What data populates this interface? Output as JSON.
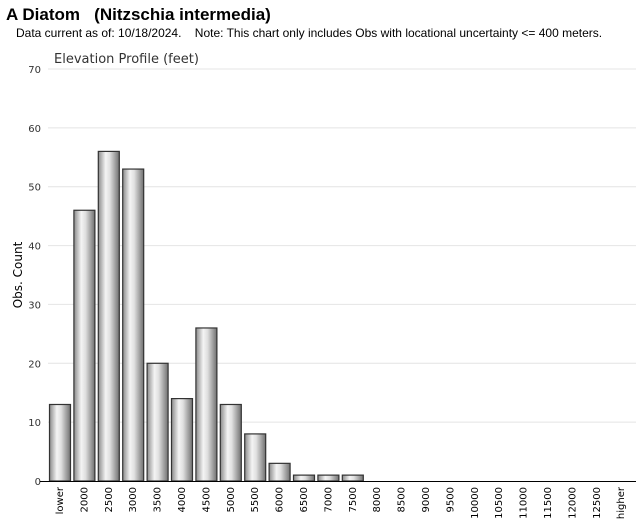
{
  "header": {
    "title": "A Diatom   (Nitzschia intermedia)",
    "note": "Data current as of: 10/18/2024.    Note: This chart only includes Obs with locational uncertainty <= 400 meters."
  },
  "chart_data": {
    "type": "bar",
    "title": "Elevation Profile (feet)",
    "xlabel": "",
    "ylabel": "Obs. Count",
    "ylim": [
      0,
      70
    ],
    "yticks": [
      0,
      10,
      20,
      30,
      40,
      50,
      60,
      70
    ],
    "grid": true,
    "categories": [
      "lower",
      "2000",
      "2500",
      "3000",
      "3500",
      "4000",
      "4500",
      "5000",
      "5500",
      "6000",
      "6500",
      "7000",
      "7500",
      "8000",
      "8500",
      "9000",
      "9500",
      "10000",
      "10500",
      "11000",
      "11500",
      "12000",
      "12500",
      "higher"
    ],
    "values": [
      13,
      46,
      56,
      53,
      20,
      14,
      26,
      13,
      8,
      3,
      1,
      1,
      1,
      0,
      0,
      0,
      0,
      0,
      0,
      0,
      0,
      0,
      0,
      0
    ]
  },
  "colors": {
    "bar_edge": "#333333",
    "bar_light": "#f2f2f2",
    "bar_dark": "#7a7a7a",
    "grid": "#e4e4e4",
    "axis": "#000000"
  }
}
